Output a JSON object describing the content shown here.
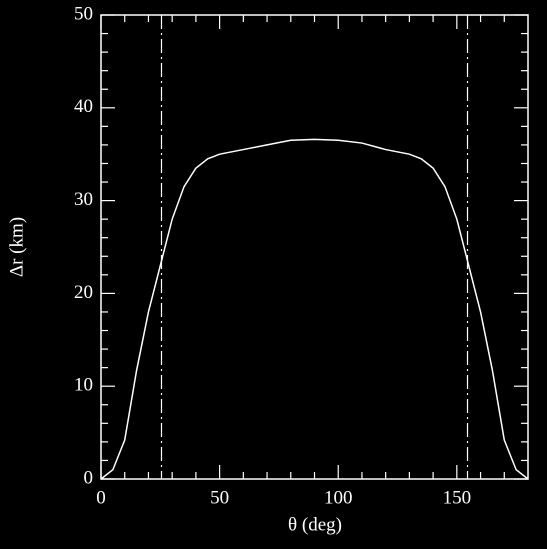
{
  "chart_data": {
    "type": "line",
    "x_label": "θ (deg)",
    "y_label": "Δr (km)",
    "x": [
      0,
      5,
      10,
      15,
      20,
      25,
      30,
      35,
      40,
      45,
      50,
      60,
      70,
      80,
      90,
      100,
      110,
      120,
      130,
      135,
      140,
      145,
      150,
      155,
      160,
      165,
      170,
      175,
      180
    ],
    "series": [
      {
        "color": "#ffffff",
        "values": [
          0,
          1,
          4.2,
          11.7,
          18,
          23,
          28,
          31.5,
          33.5,
          34.5,
          35,
          35.5,
          36,
          36.5,
          36.6,
          36.5,
          36.2,
          35.5,
          35,
          34.5,
          33.5,
          31.5,
          28,
          23,
          18,
          11.7,
          4.2,
          1,
          0
        ]
      }
    ],
    "vertical_lines": [
      25.5,
      154.5
    ],
    "xlim": [
      0,
      180
    ],
    "xticks": [
      0,
      50,
      100,
      150
    ],
    "xminorticks": [
      10,
      20,
      30,
      40,
      60,
      70,
      80,
      90,
      110,
      120,
      130,
      140,
      160,
      170
    ],
    "ylim": [
      0,
      50
    ],
    "yticks": [
      0,
      10,
      20,
      30,
      40,
      50
    ],
    "yminorticks": [
      2,
      4,
      6,
      8,
      12,
      14,
      16,
      18,
      22,
      24,
      26,
      28,
      32,
      34,
      36,
      38,
      42,
      44,
      46,
      48
    ]
  }
}
